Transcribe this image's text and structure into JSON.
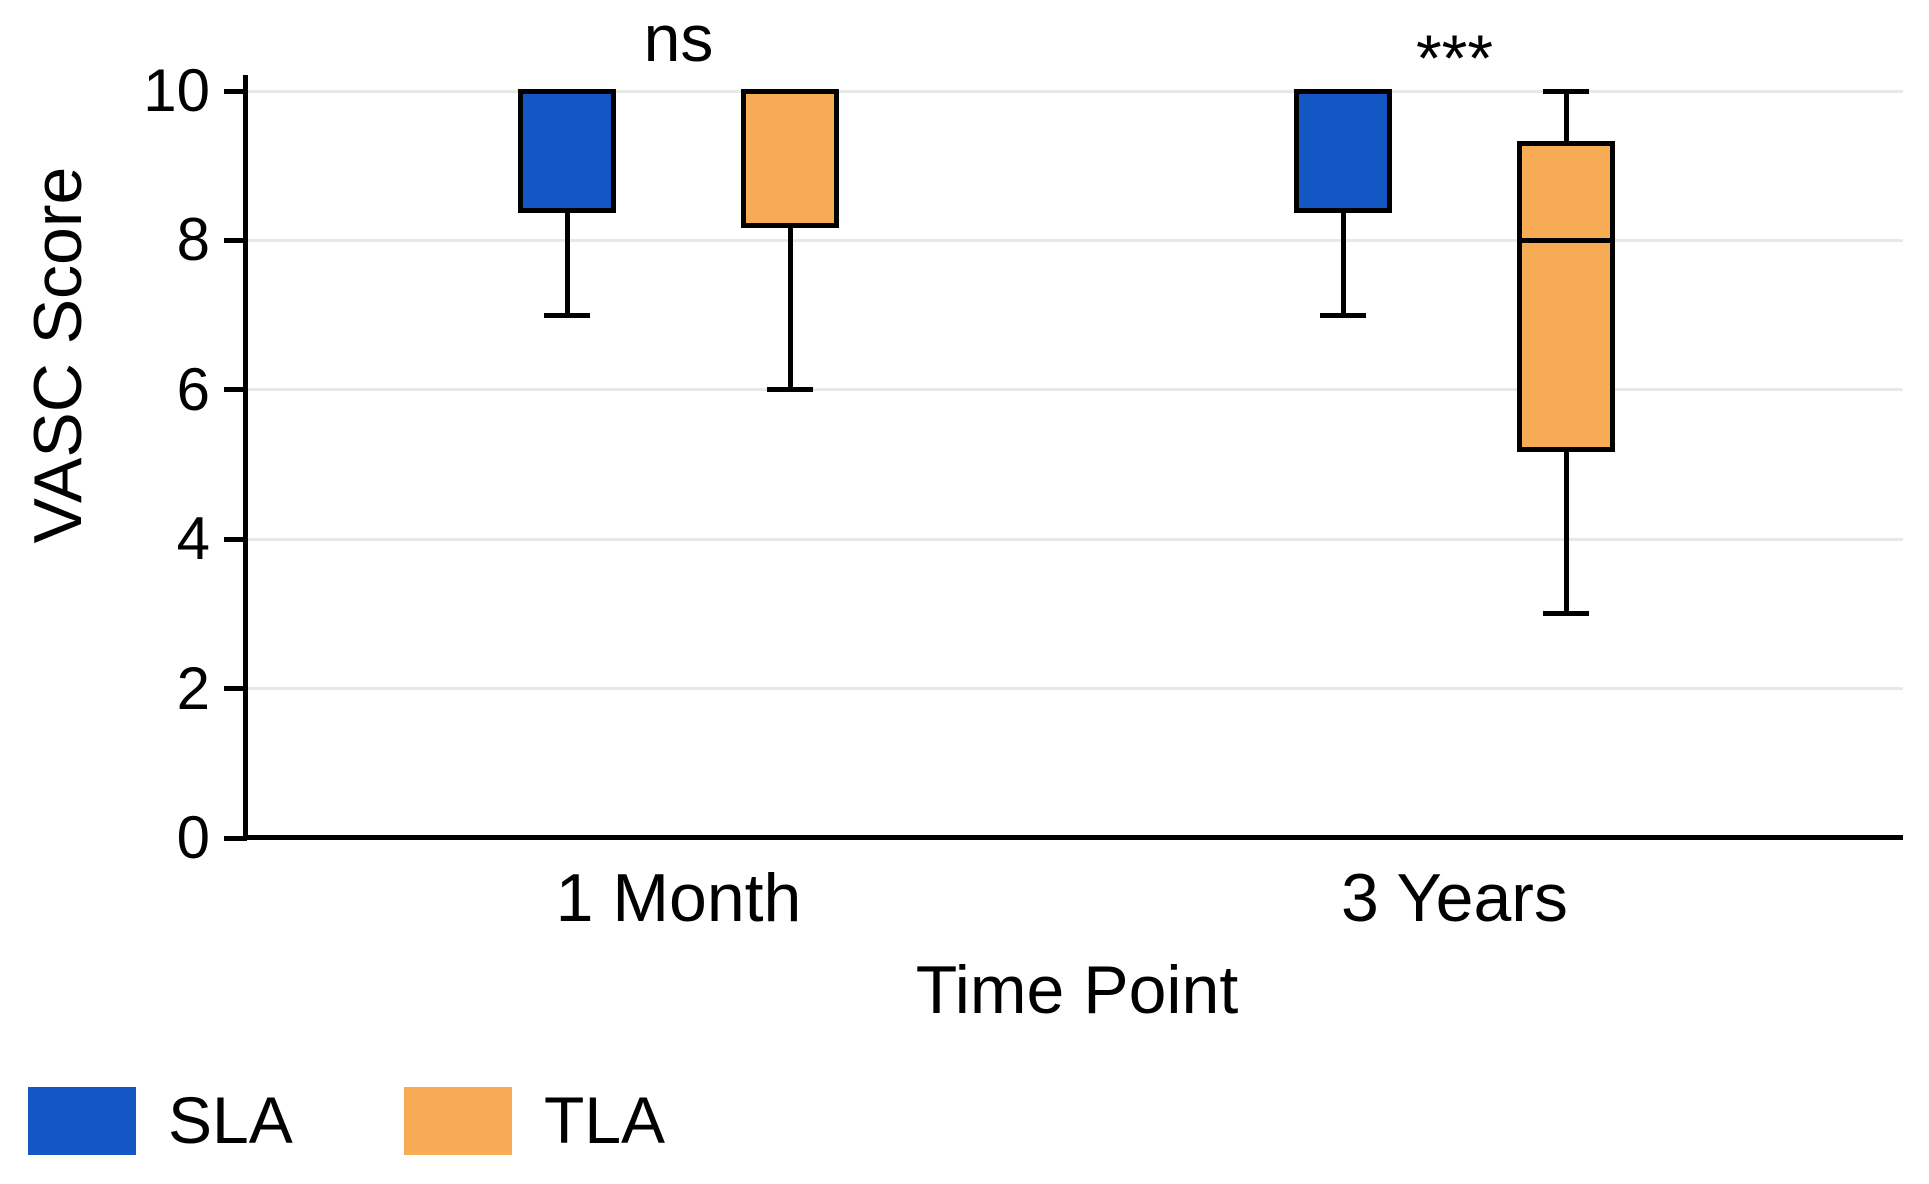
{
  "chart_data": {
    "type": "boxplot",
    "title": "",
    "xlabel": "Time Point",
    "ylabel": "VASC Score",
    "ylim": [
      0,
      10
    ],
    "yticks": [
      "0",
      "2",
      "4",
      "6",
      "8",
      "10"
    ],
    "ytick_values": [
      0,
      2,
      4,
      6,
      8,
      10
    ],
    "grid": "horizontal",
    "categories": [
      "1 Month",
      "3 Years"
    ],
    "series": [
      {
        "name": "SLA",
        "color": "#1257c4",
        "boxes": [
          {
            "category": "1 Month",
            "min": 7,
            "q1": 8.4,
            "median": 10,
            "q3": 10,
            "max": 10
          },
          {
            "category": "3 Years",
            "min": 7,
            "q1": 8.4,
            "median": 10,
            "q3": 10,
            "max": 10
          }
        ]
      },
      {
        "name": "TLA",
        "color": "#f6ab54",
        "boxes": [
          {
            "category": "1 Month",
            "min": 6,
            "q1": 8.2,
            "median": 10,
            "q3": 10,
            "max": 10
          },
          {
            "category": "3 Years",
            "min": 3,
            "q1": 5.2,
            "median": 8,
            "q3": 9.3,
            "max": 10
          }
        ]
      }
    ],
    "annotations": [
      {
        "category": "1 Month",
        "label": "ns"
      },
      {
        "category": "3 Years",
        "label": "***"
      }
    ],
    "legend": {
      "position": "bottom-left",
      "items": [
        {
          "label": "SLA",
          "color": "#1257c4"
        },
        {
          "label": "TLA",
          "color": "#f6ab54"
        }
      ]
    },
    "colors": {
      "axis": "#000000",
      "gridline": "#e8e8e8",
      "background": "#ffffff"
    }
  }
}
